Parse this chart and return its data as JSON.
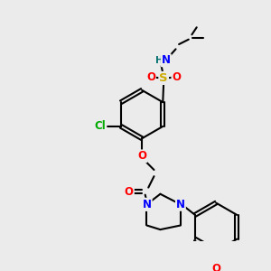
{
  "bg_color": "#ebebeb",
  "bond_color": "#000000",
  "bond_width": 1.5,
  "atom_colors": {
    "N": "#0000ff",
    "O": "#ff0000",
    "S": "#ccaa00",
    "Cl": "#00aa00",
    "H": "#007070",
    "C": "#000000"
  },
  "font_size": 8.5
}
